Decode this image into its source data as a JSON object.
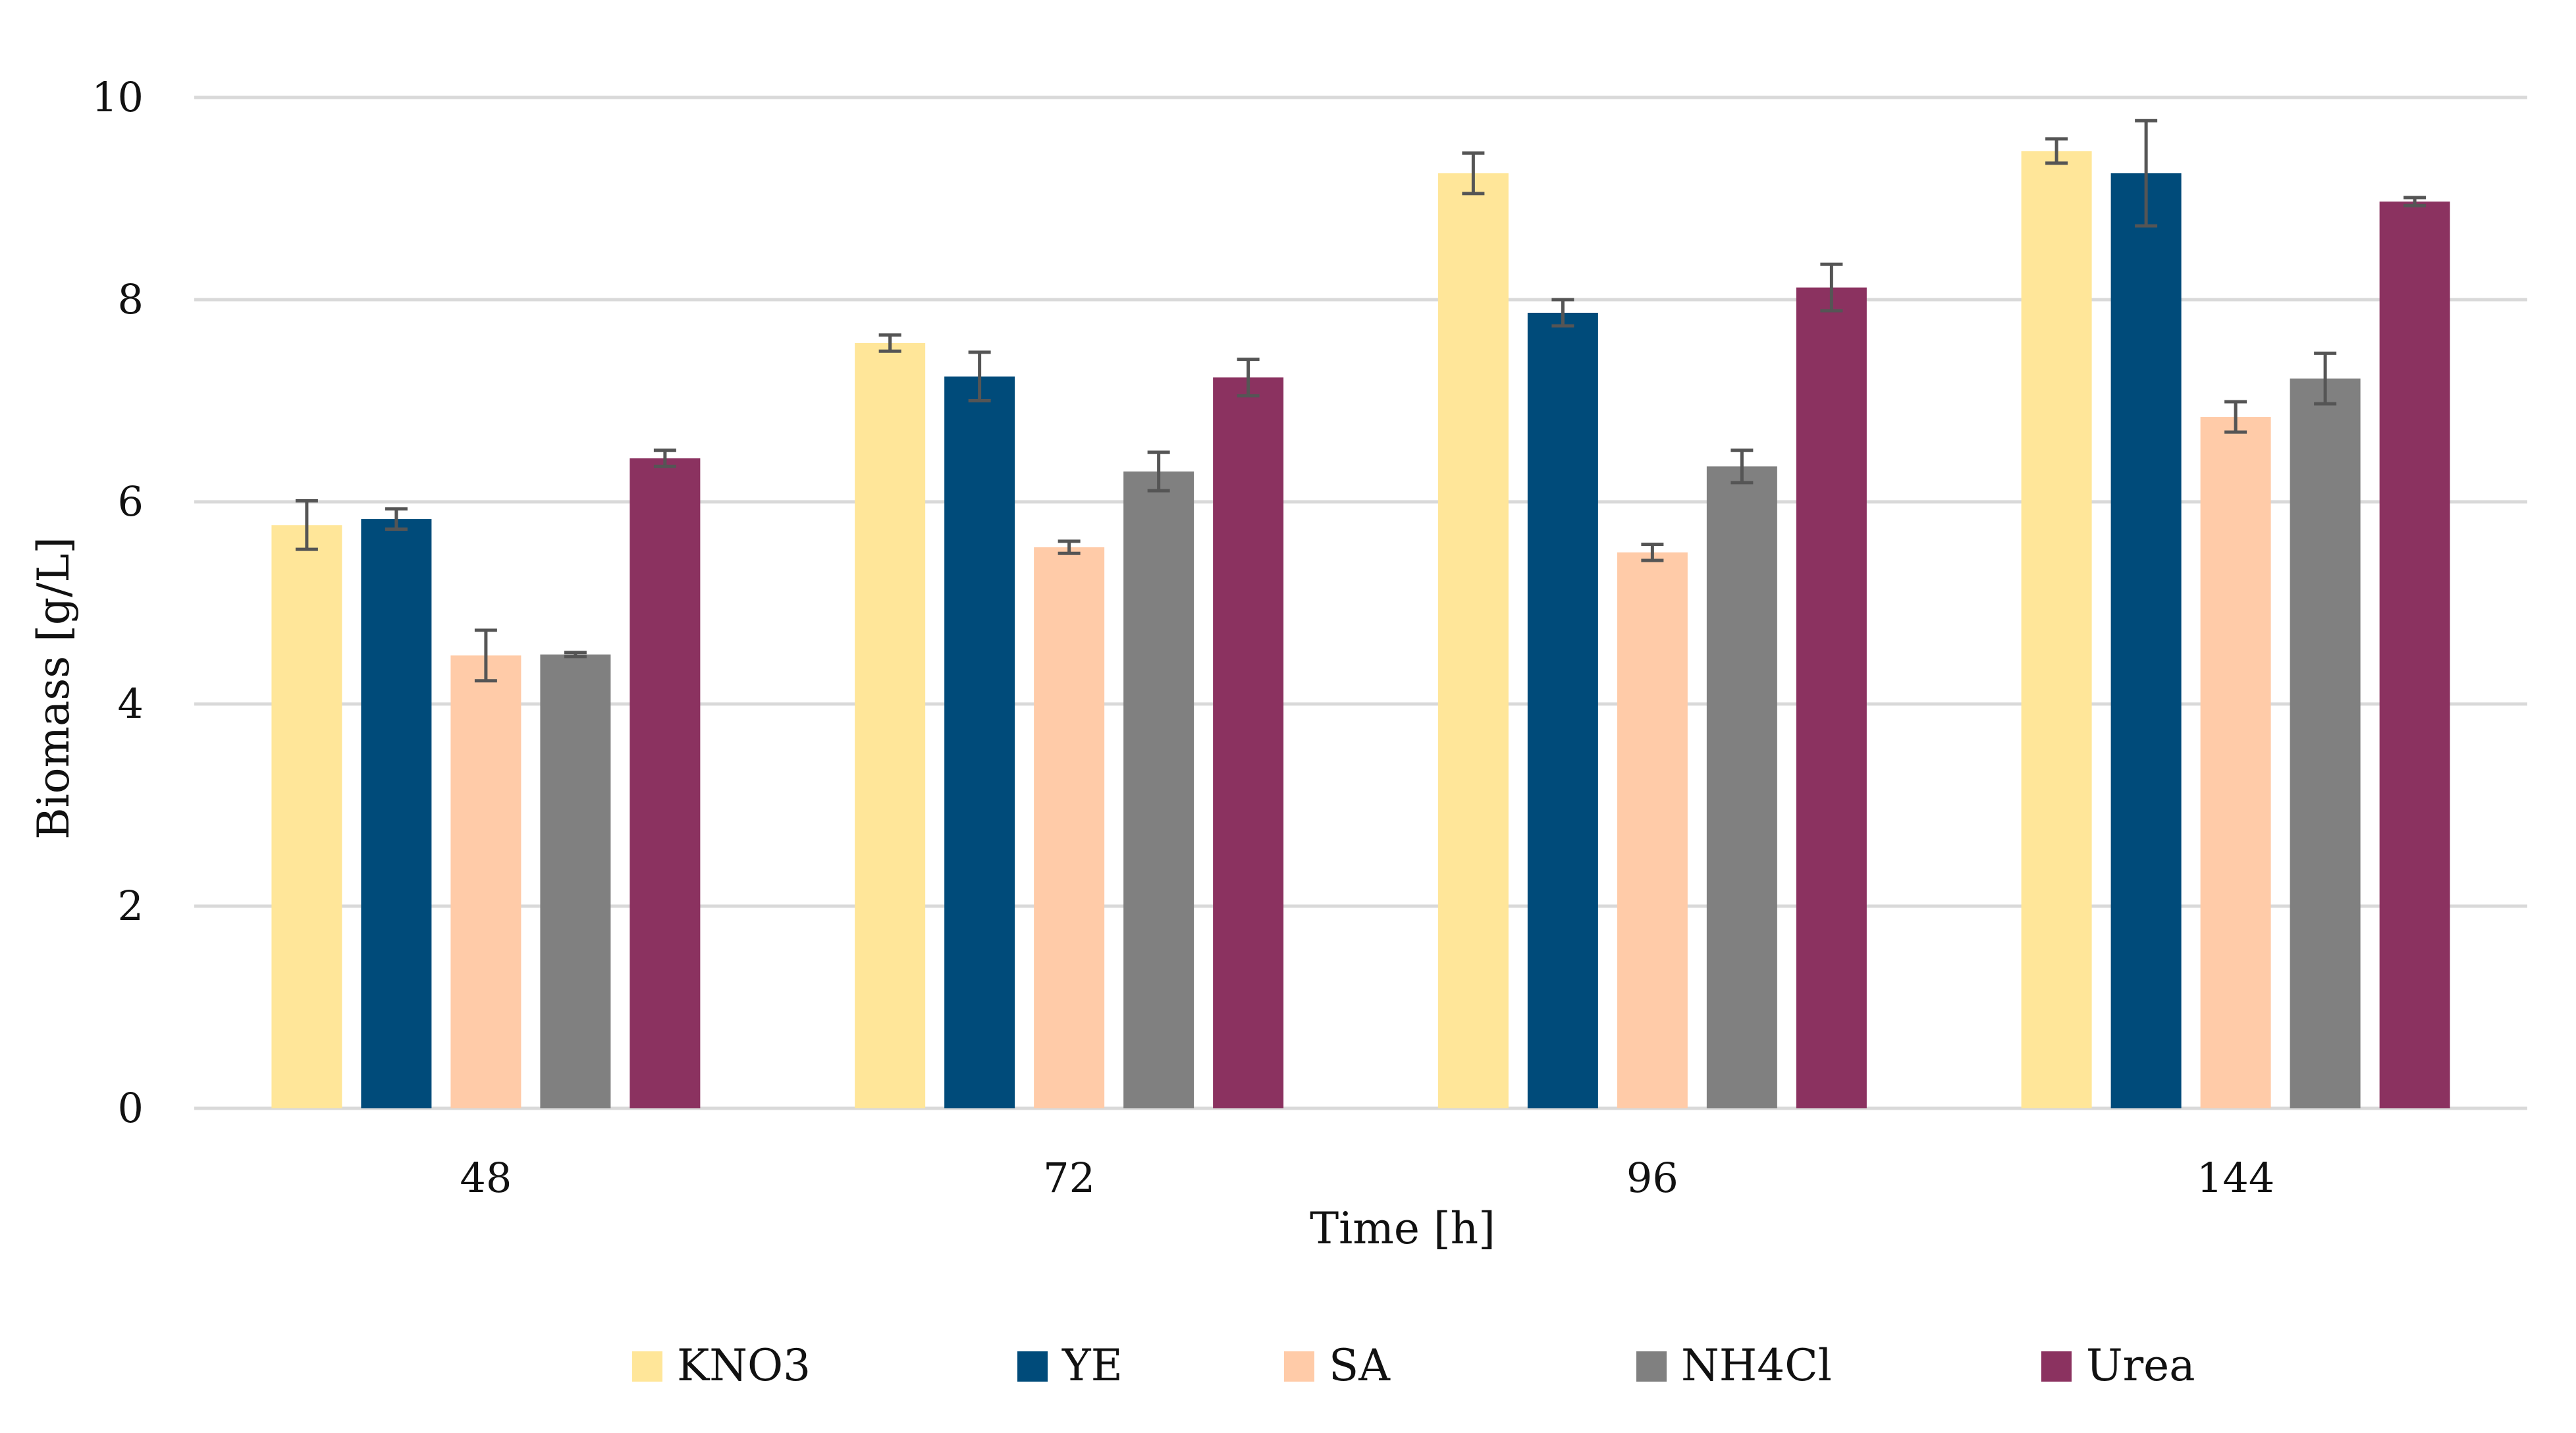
{
  "chart_data": {
    "type": "bar",
    "title": "",
    "xlabel": "Time [h]",
    "ylabel": "Biomass [g/L]",
    "ylim": [
      0,
      10
    ],
    "yticks": [
      0,
      2,
      4,
      6,
      8,
      10
    ],
    "grid": true,
    "legend_position": "bottom",
    "categories": [
      "48",
      "72",
      "96",
      "144"
    ],
    "series": [
      {
        "name": "KNO3",
        "color": "#FFE699",
        "values": [
          5.77,
          7.57,
          9.25,
          9.47
        ],
        "errors": [
          0.24,
          0.08,
          0.2,
          0.12
        ]
      },
      {
        "name": "YE",
        "color": "#004B7A",
        "values": [
          5.83,
          7.24,
          7.87,
          9.25
        ],
        "errors": [
          0.1,
          0.24,
          0.13,
          0.52
        ]
      },
      {
        "name": "SA",
        "color": "#FFCBA8",
        "values": [
          4.48,
          5.55,
          5.5,
          6.84
        ],
        "errors": [
          0.25,
          0.06,
          0.08,
          0.15
        ]
      },
      {
        "name": "NH4Cl",
        "color": "#808080",
        "values": [
          4.49,
          6.3,
          6.35,
          7.22
        ],
        "errors": [
          0.02,
          0.19,
          0.16,
          0.25
        ]
      },
      {
        "name": "Urea",
        "color": "#8B3260",
        "values": [
          6.43,
          7.23,
          8.12,
          8.97
        ],
        "errors": [
          0.08,
          0.18,
          0.23,
          0.04
        ]
      }
    ]
  }
}
